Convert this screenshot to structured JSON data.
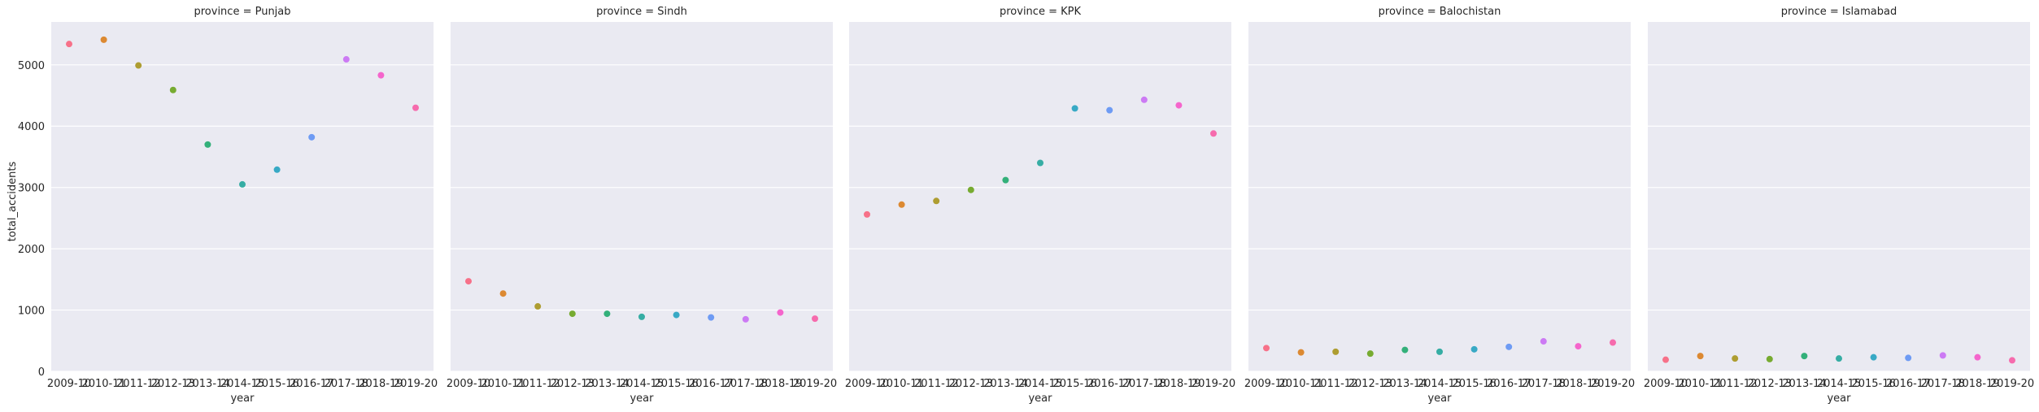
{
  "chart_data": {
    "type": "scatter",
    "style": "facet-grid strip plot",
    "ylabel": "total_accidents",
    "xlabel": "year",
    "ylim": [
      0,
      5700
    ],
    "yticks": [
      0,
      1000,
      2000,
      3000,
      4000,
      5000
    ],
    "grid": true,
    "categories": [
      "2009-10",
      "2010-11",
      "2011-12",
      "2012-13",
      "2013-14",
      "2014-15",
      "2015-16",
      "2016-17",
      "2017-18",
      "2018-19",
      "2019-20"
    ],
    "tick_labels": [
      "2009-10",
      "2010-11",
      "2011-12",
      "2012-13",
      "2013-14",
      "2014-15",
      "2015-16",
      "2016-17",
      "2017-18",
      "2018-19",
      "2019-20"
    ],
    "category_colors": [
      "#f77189",
      "#dc8932",
      "#ae9d31",
      "#77ab31",
      "#33b07a",
      "#36ada4",
      "#38a9c5",
      "#6e9bf4",
      "#cc7af4",
      "#f565cc",
      "#f66bad"
    ],
    "panels": [
      {
        "title": "province = Punjab",
        "values": [
          5340,
          5410,
          4990,
          4590,
          3700,
          3050,
          3290,
          3820,
          5090,
          4830,
          4300
        ]
      },
      {
        "title": "province = Sindh",
        "values": [
          1470,
          1270,
          1060,
          940,
          940,
          890,
          920,
          880,
          850,
          960,
          860
        ]
      },
      {
        "title": "province = KPK",
        "values": [
          2560,
          2720,
          2780,
          2960,
          3120,
          3400,
          4290,
          4260,
          4430,
          4340,
          3880
        ]
      },
      {
        "title": "province = Balochistan",
        "values": [
          380,
          310,
          320,
          290,
          350,
          320,
          360,
          400,
          490,
          410,
          470
        ]
      },
      {
        "title": "province = Islamabad",
        "values": [
          190,
          250,
          210,
          200,
          250,
          210,
          230,
          220,
          260,
          230,
          180
        ]
      }
    ]
  }
}
